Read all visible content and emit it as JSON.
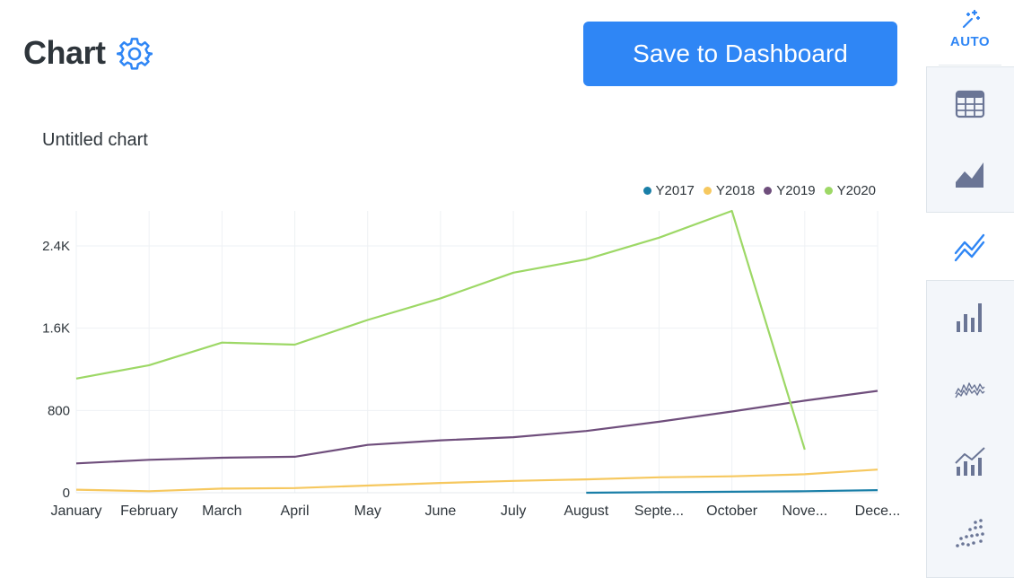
{
  "header": {
    "title": "Chart",
    "save_label": "Save to Dashboard",
    "settings_icon": "gear-icon"
  },
  "sidebar": {
    "auto_label": "AUTO",
    "items": [
      {
        "icon": "magic-wand-icon",
        "label": "AUTO",
        "active": true
      },
      {
        "icon": "table-icon"
      },
      {
        "icon": "area-chart-icon"
      },
      {
        "icon": "line-chart-icon",
        "selected": true
      },
      {
        "icon": "bar-chart-icon"
      },
      {
        "icon": "sparkline-icon"
      },
      {
        "icon": "combo-chart-icon"
      },
      {
        "icon": "scatter-chart-icon"
      }
    ]
  },
  "colors": {
    "accent": "#2f86f5",
    "icon": "#6a7595",
    "grid": "#eef1f4"
  },
  "chart_data": {
    "type": "line",
    "title": "Untitled chart",
    "xlabel": "",
    "ylabel": "",
    "categories": [
      "January",
      "February",
      "March",
      "April",
      "May",
      "June",
      "July",
      "August",
      "Septe...",
      "October",
      "Nove...",
      "Dece..."
    ],
    "yticks": [
      0,
      800,
      1600,
      2400
    ],
    "ytick_labels": [
      "0",
      "800",
      "1.6K",
      "2.4K"
    ],
    "ylim": [
      0,
      2740
    ],
    "grid": true,
    "legend_position": "top-right",
    "series": [
      {
        "name": "Y2017",
        "color": "#1a7fa8",
        "values": [
          null,
          null,
          null,
          null,
          null,
          null,
          null,
          0,
          5,
          10,
          15,
          25
        ]
      },
      {
        "name": "Y2018",
        "color": "#f6c85f",
        "values": [
          30,
          15,
          40,
          45,
          70,
          95,
          115,
          130,
          150,
          160,
          180,
          225
        ]
      },
      {
        "name": "Y2019",
        "color": "#6f4e7c",
        "values": [
          285,
          320,
          340,
          350,
          465,
          510,
          540,
          600,
          690,
          790,
          895,
          990
        ]
      },
      {
        "name": "Y2020",
        "color": "#9dd866",
        "values": [
          1110,
          1240,
          1460,
          1440,
          1680,
          1890,
          2140,
          2270,
          2480,
          2740,
          420,
          null
        ]
      }
    ]
  }
}
